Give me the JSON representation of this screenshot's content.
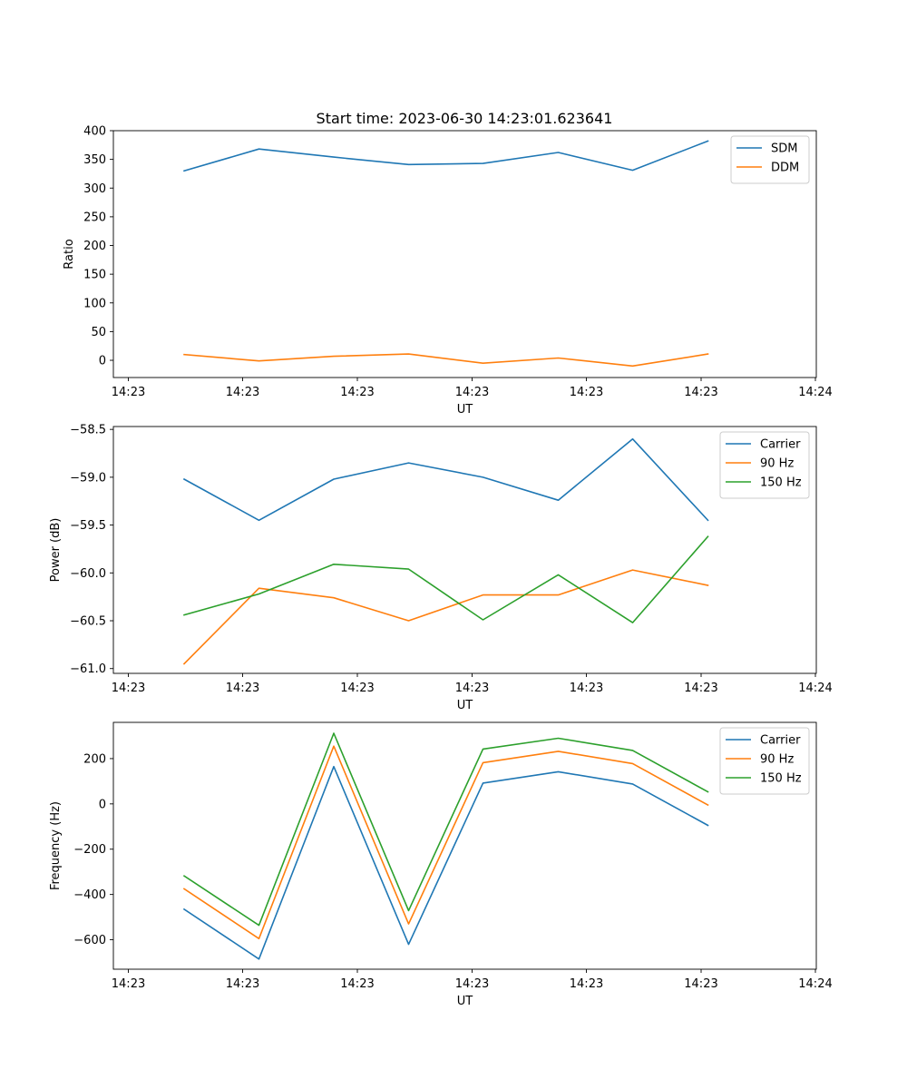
{
  "figure": {
    "title": "Start time: 2023-06-30 14:23:01.623641"
  },
  "chart_data": [
    {
      "type": "line",
      "title": "Start time: 2023-06-30 14:23:01.623641",
      "xlabel": "UT",
      "ylabel": "Ratio",
      "x_tick_labels": [
        "14:23",
        "14:23",
        "14:23",
        "14:23",
        "14:23",
        "14:23",
        "14:24"
      ],
      "y_ticks": [
        0,
        50,
        100,
        150,
        200,
        250,
        300,
        350,
        400
      ],
      "ylim": [
        -30,
        400
      ],
      "grid": false,
      "legend_position": "top-right",
      "series": [
        {
          "name": "SDM",
          "color": "#1f77b4",
          "values": [
            330,
            368,
            354,
            341,
            343,
            362,
            331,
            382
          ]
        },
        {
          "name": "DDM",
          "color": "#ff7f0e",
          "values": [
            10,
            -1,
            7,
            11,
            -5,
            4,
            -10,
            11
          ]
        }
      ]
    },
    {
      "type": "line",
      "title": "",
      "xlabel": "UT",
      "ylabel": "Power (dB)",
      "x_tick_labels": [
        "14:23",
        "14:23",
        "14:23",
        "14:23",
        "14:23",
        "14:23",
        "14:24"
      ],
      "y_ticks": [
        -61.0,
        -60.5,
        -60.0,
        -59.5,
        -59.0,
        -58.5
      ],
      "y_tick_labels": [
        "−61.0",
        "−60.5",
        "−60.0",
        "−59.5",
        "−59.0",
        "−58.5"
      ],
      "ylim": [
        -61.05,
        -58.47
      ],
      "grid": false,
      "legend_position": "top-right",
      "series": [
        {
          "name": "Carrier",
          "color": "#1f77b4",
          "values": [
            -59.02,
            -59.45,
            -59.02,
            -58.85,
            -59.0,
            -59.24,
            -58.6,
            -59.45
          ]
        },
        {
          "name": "90 Hz",
          "color": "#ff7f0e",
          "values": [
            -60.95,
            -60.16,
            -60.26,
            -60.5,
            -60.23,
            -60.23,
            -59.97,
            -60.13
          ]
        },
        {
          "name": "150 Hz",
          "color": "#2ca02c",
          "values": [
            -60.44,
            -60.22,
            -59.91,
            -59.96,
            -60.49,
            -60.02,
            -60.52,
            -59.62
          ]
        }
      ]
    },
    {
      "type": "line",
      "title": "",
      "xlabel": "UT",
      "ylabel": "Frequency (Hz)",
      "x_tick_labels": [
        "14:23",
        "14:23",
        "14:23",
        "14:23",
        "14:23",
        "14:23",
        "14:24"
      ],
      "y_ticks": [
        -600,
        -400,
        -200,
        0,
        200
      ],
      "y_tick_labels": [
        "−600",
        "−400",
        "−200",
        "0",
        "200"
      ],
      "ylim": [
        -730,
        360
      ],
      "grid": false,
      "legend_position": "top-right",
      "series": [
        {
          "name": "Carrier",
          "color": "#1f77b4",
          "values": [
            -465,
            -685,
            165,
            -620,
            92,
            142,
            88,
            -95
          ]
        },
        {
          "name": "90 Hz",
          "color": "#ff7f0e",
          "values": [
            -375,
            -595,
            255,
            -530,
            182,
            232,
            178,
            -5
          ]
        },
        {
          "name": "150 Hz",
          "color": "#2ca02c",
          "values": [
            -318,
            -536,
            312,
            -471,
            242,
            290,
            236,
            53
          ]
        }
      ]
    }
  ]
}
